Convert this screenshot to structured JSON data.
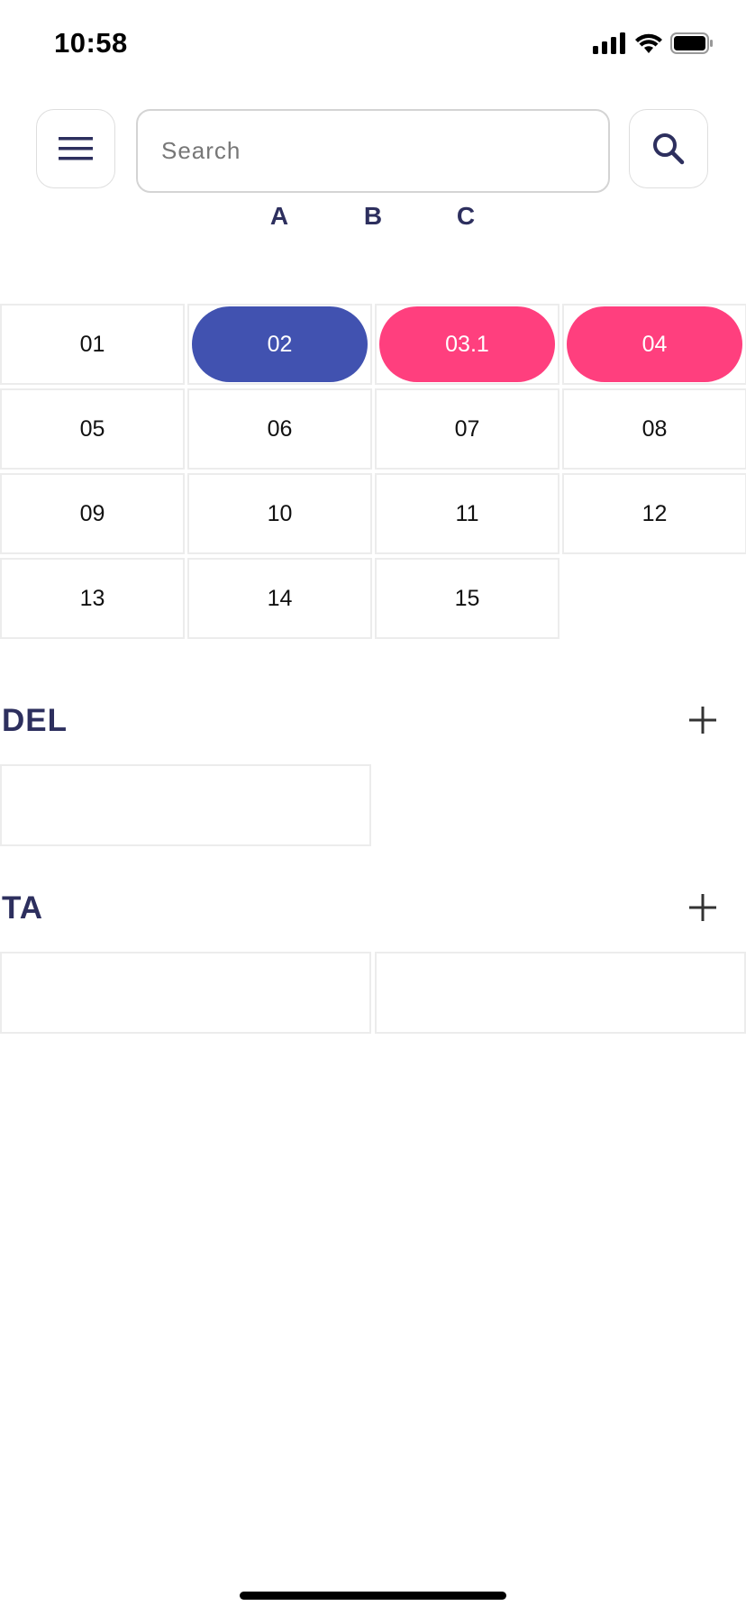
{
  "status_bar": {
    "time": "10:58",
    "icons": [
      "signal-icon",
      "wifi-icon",
      "battery-icon"
    ]
  },
  "toolbar": {
    "menu_icon": "hamburger-menu-icon",
    "search_placeholder": "Search",
    "search_value": "",
    "search_icon": "search-icon"
  },
  "tabs": [
    "A",
    "B",
    "C"
  ],
  "grid": {
    "items": [
      {
        "label": "01",
        "state": "normal"
      },
      {
        "label": "02",
        "state": "selected"
      },
      {
        "label": "03.1",
        "state": "highlighted"
      },
      {
        "label": "04",
        "state": "highlighted"
      },
      {
        "label": "05",
        "state": "normal"
      },
      {
        "label": "06",
        "state": "normal"
      },
      {
        "label": "07",
        "state": "normal"
      },
      {
        "label": "08",
        "state": "normal"
      },
      {
        "label": "09",
        "state": "normal"
      },
      {
        "label": "10",
        "state": "normal"
      },
      {
        "label": "11",
        "state": "normal"
      },
      {
        "label": "12",
        "state": "normal"
      },
      {
        "label": "13",
        "state": "normal"
      },
      {
        "label": "14",
        "state": "normal"
      },
      {
        "label": "15",
        "state": "normal"
      }
    ]
  },
  "sections": [
    {
      "title": "DEL",
      "add_icon": "plus-icon"
    },
    {
      "title": "TA",
      "add_icon": "plus-icon"
    }
  ],
  "colors": {
    "selected": "#4152b0",
    "highlighted": "#ff3f7e",
    "text_accent": "#2d2f5e"
  }
}
